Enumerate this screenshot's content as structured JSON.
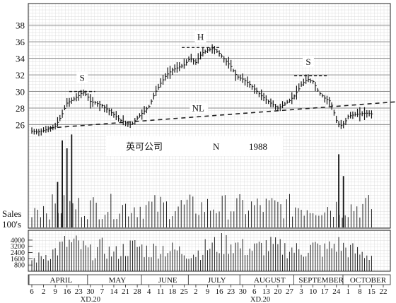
{
  "chart_data": {
    "type": "bar-ohlc",
    "title": "英可公司",
    "exchange": "N",
    "year": "1988",
    "price_axis": {
      "ticks": [
        26,
        28,
        30,
        32,
        34,
        36,
        38
      ],
      "range": [
        24,
        39.5
      ]
    },
    "volume_axis": {
      "label_line1": "Sales",
      "label_line2": "100's",
      "ticks": [
        800,
        1600,
        2400,
        3200,
        4000
      ],
      "range": [
        0,
        4900
      ]
    },
    "months": [
      "APRIL",
      "MAY",
      "JUNE",
      "JULY",
      "AUGUST",
      "SEPTEMBER",
      "OCTOBER"
    ],
    "week_labels": [
      "6",
      "2",
      "9",
      "16",
      "23",
      "30",
      "7",
      "14",
      "21",
      "28",
      "4",
      "11",
      "18",
      "25",
      "2",
      "9",
      "16",
      "23",
      "30",
      "6",
      "13",
      "20",
      "27",
      "3",
      "10",
      "17",
      "24",
      "1",
      "8",
      "15",
      "22"
    ],
    "ex_dividend_labels": [
      {
        "text": "XD.20",
        "week": 5
      },
      {
        "text": "XD.20",
        "week": 19.5
      }
    ],
    "annotations": [
      {
        "text": "S",
        "week": 4.3,
        "price": 31.3
      },
      {
        "text": "H",
        "week": 14.4,
        "price": 36.2
      },
      {
        "text": "S",
        "week": 23.6,
        "price": 33.2
      },
      {
        "text": "NL",
        "week": 14.2,
        "price": 27.6
      }
    ],
    "neckline": {
      "start": [
        1.5,
        25.6
      ],
      "end": [
        31.5,
        28.8
      ]
    },
    "resistance_lines": [
      {
        "week": [
          3.2,
          5.4
        ],
        "price": 30.0
      },
      {
        "week": [
          12.8,
          16.0
        ],
        "price": 35.3
      },
      {
        "week": [
          22.4,
          25.2
        ],
        "price": 31.9
      }
    ],
    "price_path": [
      [
        0,
        25.2
      ],
      [
        0.5,
        25.1
      ],
      [
        1,
        25.3
      ],
      [
        1.5,
        25.5
      ],
      [
        2,
        25.8
      ],
      [
        2.5,
        27.0
      ],
      [
        3,
        28.6
      ],
      [
        3.5,
        29.0
      ],
      [
        4,
        29.5
      ],
      [
        4.3,
        29.9
      ],
      [
        4.7,
        29.6
      ],
      [
        5,
        28.8
      ],
      [
        5.5,
        28.6
      ],
      [
        6,
        28.3
      ],
      [
        6.5,
        27.8
      ],
      [
        7,
        27.2
      ],
      [
        7.5,
        26.6
      ],
      [
        8,
        26.2
      ],
      [
        8.5,
        26.0
      ],
      [
        9,
        26.8
      ],
      [
        9.5,
        27.5
      ],
      [
        10,
        28.2
      ],
      [
        10.5,
        29.8
      ],
      [
        11,
        31.0
      ],
      [
        11.5,
        32.0
      ],
      [
        12,
        32.6
      ],
      [
        12.5,
        32.9
      ],
      [
        13,
        33.2
      ],
      [
        13.5,
        34.0
      ],
      [
        14,
        33.5
      ],
      [
        14.5,
        34.6
      ],
      [
        15,
        35.0
      ],
      [
        15.5,
        35.2
      ],
      [
        16,
        34.6
      ],
      [
        16.5,
        33.8
      ],
      [
        17,
        33.0
      ],
      [
        17.5,
        31.8
      ],
      [
        18,
        31.5
      ],
      [
        18.5,
        31.0
      ],
      [
        19,
        30.3
      ],
      [
        19.5,
        29.6
      ],
      [
        20,
        29.0
      ],
      [
        20.5,
        28.5
      ],
      [
        21,
        28.0
      ],
      [
        21.5,
        28.4
      ],
      [
        22,
        28.9
      ],
      [
        22.5,
        29.6
      ],
      [
        23,
        30.8
      ],
      [
        23.5,
        31.5
      ],
      [
        24,
        31.2
      ],
      [
        24.5,
        29.9
      ],
      [
        25,
        29.2
      ],
      [
        25.5,
        28.8
      ],
      [
        26,
        26.5
      ],
      [
        26.3,
        25.8
      ],
      [
        26.7,
        26.2
      ],
      [
        27,
        27.0
      ],
      [
        27.5,
        27.2
      ],
      [
        28,
        27.3
      ],
      [
        28.5,
        27.4
      ],
      [
        29,
        27.3
      ]
    ],
    "volume_path": [
      [
        0,
        1400
      ],
      [
        1,
        2000
      ],
      [
        2,
        2600
      ],
      [
        3,
        3600
      ],
      [
        4,
        3300
      ],
      [
        5,
        2400
      ],
      [
        6,
        3000
      ],
      [
        7,
        2200
      ],
      [
        8,
        2900
      ],
      [
        9,
        3200
      ],
      [
        10,
        2600
      ],
      [
        11,
        3000
      ],
      [
        12,
        2700
      ],
      [
        13,
        2500
      ],
      [
        14,
        2300
      ],
      [
        15,
        3100
      ],
      [
        16,
        3400
      ],
      [
        17,
        3700
      ],
      [
        18,
        3000
      ],
      [
        19,
        2800
      ],
      [
        20,
        3300
      ],
      [
        21,
        3000
      ],
      [
        22,
        2900
      ],
      [
        23,
        2600
      ],
      [
        24,
        3100
      ],
      [
        25,
        2700
      ],
      [
        26,
        3500
      ],
      [
        27,
        2800
      ],
      [
        28,
        2300
      ],
      [
        29,
        2000
      ]
    ],
    "volume_spikes": [
      {
        "week": 2.6,
        "value": 8800
      },
      {
        "week": 3.0,
        "value": 8000
      },
      {
        "week": 3.4,
        "value": 9400
      },
      {
        "week": 2.2,
        "value": 4600
      },
      {
        "week": 26.2,
        "value": 7400
      },
      {
        "week": 26.6,
        "value": 5200
      }
    ]
  }
}
